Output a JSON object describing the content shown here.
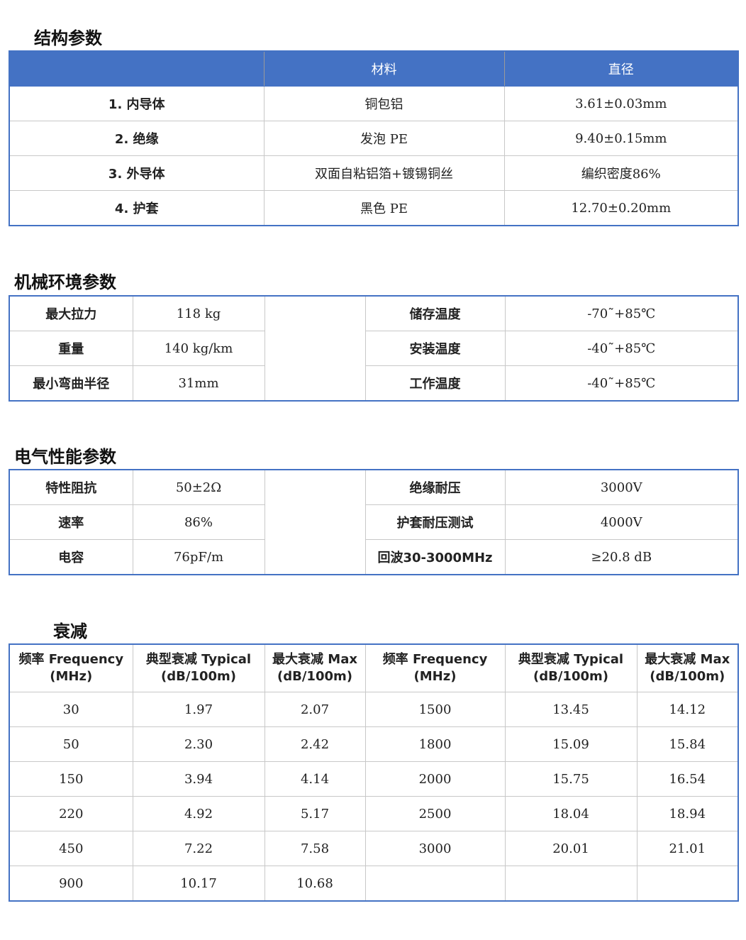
{
  "structure": {
    "title": "结构参数",
    "headers": [
      "",
      "材料",
      "直径"
    ],
    "rows": [
      [
        "1. 内导体",
        "铜包铝",
        "3.61±0.03mm"
      ],
      [
        "2. 绝缘",
        "发泡 PE",
        "9.40±0.15mm"
      ],
      [
        "3. 外导体",
        "双面自粘铝箔+镀锡铜丝",
        "编织密度86%"
      ],
      [
        "4. 护套",
        "黑色 PE",
        "12.70±0.20mm"
      ]
    ]
  },
  "mechanical": {
    "title": "机械环境参数",
    "rows": [
      [
        "最大拉力",
        "118 kg",
        "储存温度",
        "-70˜+85℃"
      ],
      [
        "重量",
        "140 kg/km",
        "安装温度",
        "-40˜+85℃"
      ],
      [
        "最小弯曲半径",
        "31mm",
        "工作温度",
        "-40˜+85℃"
      ]
    ]
  },
  "electrical": {
    "title": "电气性能参数",
    "rows": [
      [
        "特性阻抗",
        "50±2Ω",
        "绝缘耐压",
        "3000V"
      ],
      [
        "速率",
        "86%",
        "护套耐压测试",
        "4000V"
      ],
      [
        "电容",
        "76pF/m",
        "回波30-3000MHz",
        "≥20.8 dB"
      ]
    ]
  },
  "attenuation": {
    "title": "衰减",
    "headers": [
      [
        "频率 Frequency",
        "(MHz)"
      ],
      [
        "典型衰减 Typical",
        "(dB/100m)"
      ],
      [
        "最大衰减 Max",
        "(dB/100m)"
      ],
      [
        "频率 Frequency",
        "(MHz)"
      ],
      [
        "典型衰减 Typical",
        "(dB/100m)"
      ],
      [
        "最大衰减 Max",
        "(dB/100m)"
      ]
    ],
    "rows": [
      [
        "30",
        "1.97",
        "2.07",
        "1500",
        "13.45",
        "14.12"
      ],
      [
        "50",
        "2.30",
        "2.42",
        "1800",
        "15.09",
        "15.84"
      ],
      [
        "150",
        "3.94",
        "4.14",
        "2000",
        "15.75",
        "16.54"
      ],
      [
        "220",
        "4.92",
        "5.17",
        "2500",
        "18.04",
        "18.94"
      ],
      [
        "450",
        "7.22",
        "7.58",
        "3000",
        "20.01",
        "21.01"
      ],
      [
        "900",
        "10.17",
        "10.68",
        "",
        "",
        ""
      ]
    ]
  },
  "colors": {
    "accent": "#4472C4"
  }
}
